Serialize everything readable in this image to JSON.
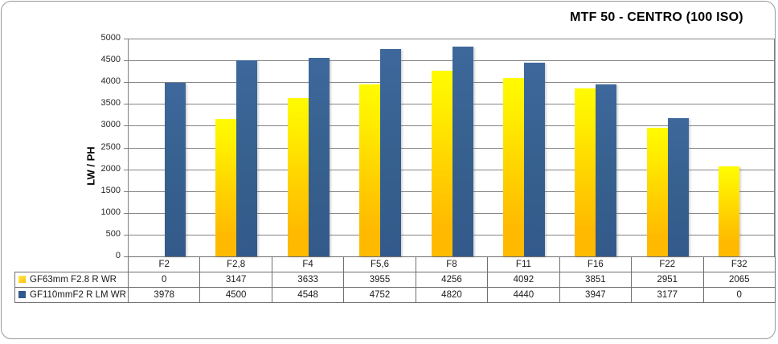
{
  "chart_data": {
    "type": "bar",
    "title": "MTF 50 - CENTRO (100 ISO)",
    "ylabel": "LW / PH",
    "xlabel": "",
    "categories": [
      "F2",
      "F2,8",
      "F4",
      "F5,6",
      "F8",
      "F11",
      "F16",
      "F22",
      "F32"
    ],
    "series": [
      {
        "name": "GF63mm F2.8 R WR",
        "color": "#FFD000",
        "color_top": "#FFFB00",
        "color_bottom": "#FFB900",
        "values": [
          0,
          3147,
          3633,
          3955,
          4256,
          4092,
          3851,
          2951,
          2065
        ]
      },
      {
        "name": "GF110mmF2 R LM WR",
        "color": "#37618F",
        "values": [
          3978,
          4500,
          4548,
          4752,
          4820,
          4440,
          3947,
          3177,
          0
        ]
      }
    ],
    "ylim": [
      0,
      5000
    ],
    "ytick_step": 500,
    "yticks": [
      5000,
      4500,
      4000,
      3500,
      3000,
      2500,
      2000,
      1500,
      1000,
      500,
      0
    ],
    "grid": true,
    "legend_position": "data-table-left",
    "data_table": true,
    "colors": {
      "gridline": "#848484",
      "axis": "#7F7F7F",
      "table_border": "#707070",
      "frame_border": "#9A9A9A",
      "background": "#FFFFFF"
    }
  }
}
